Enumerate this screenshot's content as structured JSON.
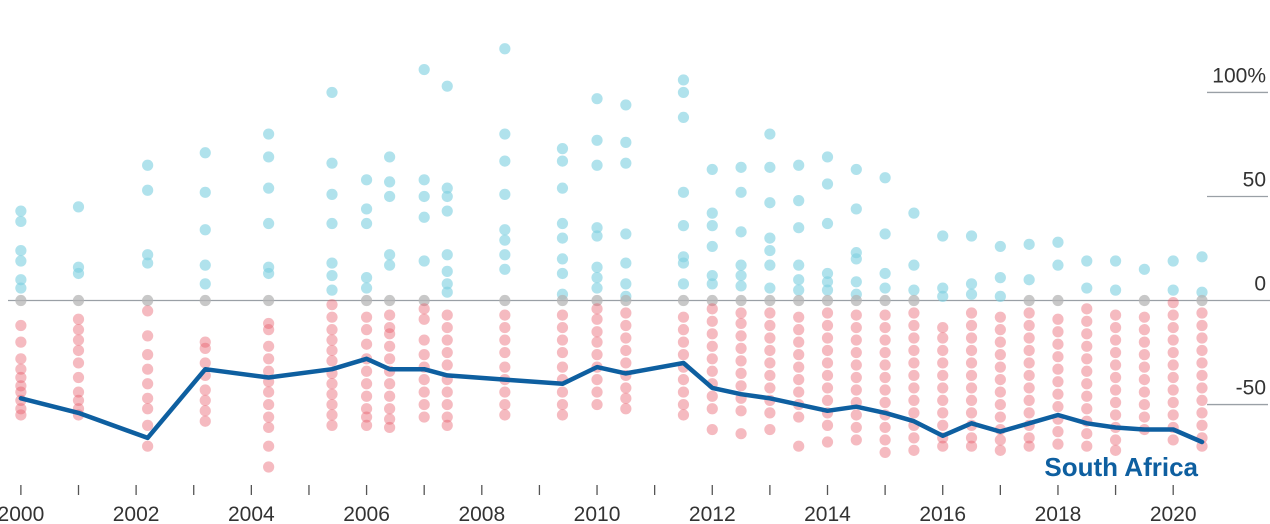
{
  "chart_data": {
    "type": "scatter",
    "xlim": [
      1999.95,
      2020.5
    ],
    "ylim": [
      -80,
      130
    ],
    "x_ticks": [
      "2000",
      "2002",
      "2004",
      "2006",
      "2008",
      "2010",
      "2012",
      "2014",
      "2016",
      "2018",
      "2020"
    ],
    "x_tick_values": [
      2000,
      2002,
      2004,
      2006,
      2008,
      2010,
      2012,
      2014,
      2016,
      2018,
      2020
    ],
    "y_ticks": [
      {
        "value": 100,
        "label": "100%"
      },
      {
        "value": 50,
        "label": "50"
      },
      {
        "value": 0,
        "label": "0"
      },
      {
        "value": -50,
        "label": "-50"
      }
    ],
    "grid": "y-right-stubs",
    "highlight_series": {
      "name": "South Africa",
      "color": "#0e5fa0",
      "x": [
        2000,
        2001,
        2002.2,
        2003.2,
        2004.3,
        2005.4,
        2006,
        2006.4,
        2007,
        2007.4,
        2008.4,
        2009.4,
        2010,
        2010.5,
        2011.5,
        2012,
        2012.5,
        2013,
        2013.5,
        2014,
        2014.5,
        2015,
        2015.5,
        2016,
        2016.5,
        2017,
        2017.5,
        2018,
        2018.5,
        2019,
        2019.5,
        2020,
        2020.5
      ],
      "y": [
        -47,
        -54,
        -66,
        -33,
        -37,
        -33,
        -28,
        -33,
        -33,
        -36,
        -38,
        -40,
        -32,
        -35,
        -30,
        -42,
        -45,
        -47,
        -50,
        -53,
        -51,
        -54,
        -58,
        -65,
        -59,
        -63,
        -59,
        -55,
        -59,
        -61,
        -62,
        -62,
        -68
      ]
    },
    "dot_colors": {
      "positive": "#7fd0e0",
      "negative": "#e85a6a",
      "zero": "#b5b5b5"
    },
    "dot_groups": [
      {
        "x": 2000,
        "values": [
          43,
          38,
          24,
          19,
          10,
          6,
          0,
          -12,
          -20,
          -28,
          -33,
          -37,
          -41,
          -44,
          -48,
          -52,
          -55
        ]
      },
      {
        "x": 2001,
        "values": [
          45,
          16,
          13,
          0,
          -9,
          -14,
          -19,
          -24,
          -30,
          -37,
          -44,
          -48,
          -52,
          -55
        ]
      },
      {
        "x": 2002.2,
        "values": [
          65,
          53,
          22,
          18,
          0,
          -5,
          -17,
          -26,
          -33,
          -40,
          -47,
          -52,
          -60,
          -70
        ]
      },
      {
        "x": 2003.2,
        "values": [
          71,
          52,
          34,
          17,
          8,
          0,
          -20,
          -23,
          -30,
          -36,
          -43,
          -48,
          -53,
          -58
        ]
      },
      {
        "x": 2004.3,
        "values": [
          80,
          69,
          54,
          37,
          16,
          13,
          0,
          -11,
          -14,
          -22,
          -28,
          -34,
          -39,
          -44,
          -50,
          -56,
          -61,
          -70,
          -80
        ]
      },
      {
        "x": 2005.4,
        "values": [
          100,
          66,
          51,
          37,
          18,
          12,
          5,
          -2,
          -8,
          -14,
          -19,
          -24,
          -29,
          -35,
          -40,
          -45,
          -50,
          -55,
          -60
        ]
      },
      {
        "x": 2006,
        "values": [
          58,
          44,
          37,
          11,
          6,
          0,
          -8,
          -14,
          -21,
          -28,
          -34,
          -40,
          -46,
          -52,
          -56,
          -60
        ]
      },
      {
        "x": 2006.4,
        "values": [
          69,
          57,
          50,
          22,
          17,
          0,
          -7,
          -13,
          -16,
          -22,
          -28,
          -34,
          -40,
          -46,
          -52,
          -57,
          -61
        ]
      },
      {
        "x": 2007,
        "values": [
          111,
          58,
          50,
          40,
          19,
          0,
          -4,
          -9,
          -19,
          -26,
          -32,
          -38,
          -44,
          -50,
          -56
        ]
      },
      {
        "x": 2007.4,
        "values": [
          103,
          54,
          50,
          43,
          22,
          14,
          8,
          4,
          -7,
          -13,
          -19,
          -25,
          -31,
          -38,
          -44,
          -50,
          -56,
          -60
        ]
      },
      {
        "x": 2008.4,
        "values": [
          121,
          80,
          67,
          51,
          34,
          29,
          22,
          15,
          0,
          -7,
          -13,
          -19,
          -25,
          -32,
          -38,
          -44,
          -50,
          -55
        ]
      },
      {
        "x": 2009.4,
        "values": [
          73,
          67,
          54,
          37,
          30,
          20,
          13,
          3,
          0,
          -7,
          -13,
          -19,
          -25,
          -32,
          -38,
          -44,
          -50,
          -55
        ]
      },
      {
        "x": 2010,
        "values": [
          97,
          77,
          65,
          35,
          31,
          16,
          11,
          6,
          0,
          -4,
          -9,
          -15,
          -20,
          -26,
          -32,
          -38,
          -44,
          -50
        ]
      },
      {
        "x": 2010.5,
        "values": [
          94,
          76,
          66,
          32,
          18,
          8,
          2,
          0,
          -6,
          -12,
          -18,
          -24,
          -30,
          -36,
          -42,
          -47,
          -52
        ]
      },
      {
        "x": 2011.5,
        "values": [
          106,
          100,
          88,
          52,
          36,
          21,
          18,
          8,
          0,
          -8,
          -14,
          -20,
          -26,
          -32,
          -38,
          -44,
          -50,
          -55
        ]
      },
      {
        "x": 2012,
        "values": [
          63,
          42,
          36,
          26,
          12,
          8,
          0,
          -4,
          -10,
          -16,
          -22,
          -28,
          -34,
          -40,
          -46,
          -52,
          -62
        ]
      },
      {
        "x": 2012.5,
        "values": [
          64,
          52,
          33,
          17,
          12,
          7,
          0,
          -6,
          -11,
          -17,
          -23,
          -29,
          -35,
          -41,
          -47,
          -53,
          -64
        ]
      },
      {
        "x": 2013,
        "values": [
          80,
          64,
          47,
          30,
          24,
          17,
          6,
          0,
          -6,
          -12,
          -18,
          -24,
          -30,
          -36,
          -42,
          -48,
          -54,
          -62
        ]
      },
      {
        "x": 2013.5,
        "values": [
          65,
          48,
          35,
          17,
          10,
          5,
          0,
          -8,
          -14,
          -20,
          -26,
          -32,
          -38,
          -44,
          -50,
          -56,
          -70
        ]
      },
      {
        "x": 2014,
        "values": [
          69,
          56,
          37,
          13,
          9,
          5,
          0,
          -6,
          -12,
          -18,
          -24,
          -30,
          -36,
          -42,
          -48,
          -54,
          -60,
          -68
        ]
      },
      {
        "x": 2014.5,
        "values": [
          63,
          44,
          23,
          20,
          9,
          3,
          0,
          -7,
          -13,
          -19,
          -25,
          -31,
          -37,
          -43,
          -49,
          -55,
          -61,
          -67
        ]
      },
      {
        "x": 2015,
        "values": [
          59,
          32,
          13,
          6,
          0,
          -7,
          -13,
          -19,
          -25,
          -31,
          -37,
          -43,
          -49,
          -55,
          -61,
          -67,
          -73
        ]
      },
      {
        "x": 2015.5,
        "values": [
          42,
          17,
          5,
          0,
          -6,
          -12,
          -18,
          -24,
          -30,
          -36,
          -42,
          -48,
          -54,
          -60,
          -66,
          -72
        ]
      },
      {
        "x": 2016,
        "values": [
          31,
          6,
          2,
          -13,
          -18,
          -24,
          -30,
          -36,
          -42,
          -48,
          -54,
          -60,
          -66,
          -70
        ]
      },
      {
        "x": 2016.5,
        "values": [
          31,
          8,
          3,
          -6,
          -12,
          -18,
          -24,
          -30,
          -36,
          -42,
          -48,
          -54,
          -60,
          -66,
          -70
        ]
      },
      {
        "x": 2017,
        "values": [
          26,
          11,
          2,
          -8,
          -14,
          -20,
          -26,
          -32,
          -38,
          -44,
          -50,
          -56,
          -62,
          -67,
          -72
        ]
      },
      {
        "x": 2017.5,
        "values": [
          27,
          10,
          0,
          -6,
          -12,
          -18,
          -24,
          -30,
          -36,
          -42,
          -48,
          -54,
          -60,
          -66,
          -70
        ]
      },
      {
        "x": 2018,
        "values": [
          28,
          17,
          0,
          -9,
          -15,
          -21,
          -27,
          -33,
          -39,
          -45,
          -51,
          -57,
          -63,
          -69
        ]
      },
      {
        "x": 2018.5,
        "values": [
          19,
          6,
          -4,
          -10,
          -16,
          -22,
          -28,
          -34,
          -40,
          -46,
          -52,
          -58,
          -64,
          -70
        ]
      },
      {
        "x": 2019,
        "values": [
          19,
          5,
          -7,
          -13,
          -19,
          -25,
          -31,
          -37,
          -43,
          -49,
          -55,
          -61,
          -67,
          -72
        ]
      },
      {
        "x": 2019.5,
        "values": [
          15,
          0,
          -8,
          -14,
          -20,
          -26,
          -32,
          -38,
          -44,
          -50,
          -56,
          -62
        ]
      },
      {
        "x": 2020,
        "values": [
          19,
          5,
          -1,
          -7,
          -13,
          -19,
          -25,
          -31,
          -37,
          -43,
          -49,
          -55,
          -61,
          -67
        ]
      },
      {
        "x": 2020.5,
        "values": [
          21,
          4,
          0,
          -6,
          -12,
          -18,
          -24,
          -30,
          -36,
          -42,
          -48,
          -54,
          -60,
          -66,
          -70
        ]
      }
    ]
  }
}
